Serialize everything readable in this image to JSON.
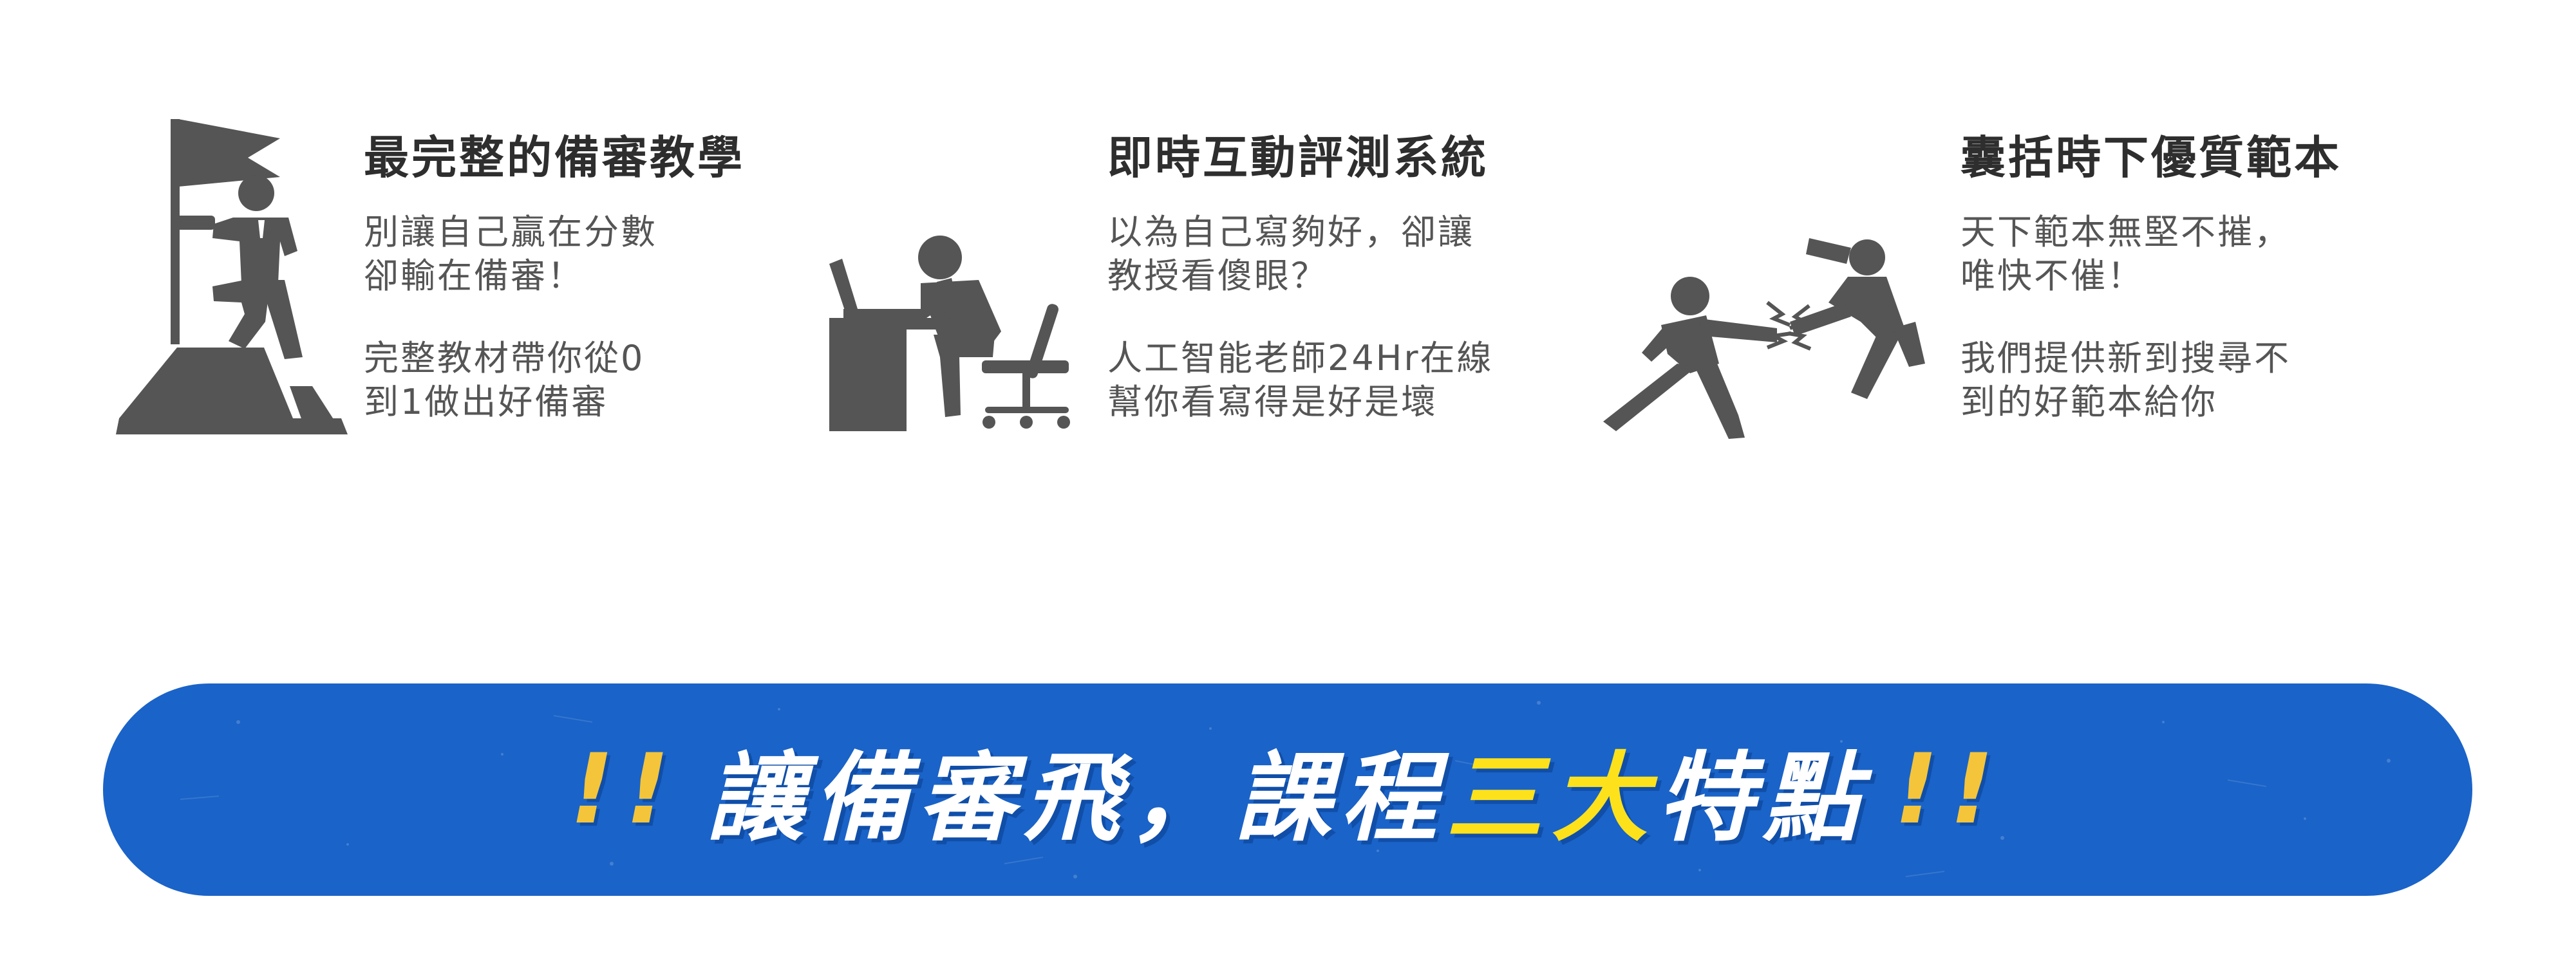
{
  "colors": {
    "icon_gray": "#555555",
    "title_text": "#2e2e2e",
    "body_text": "#555555",
    "banner_blue": "#1a63c8",
    "banner_highlight_yellow": "#fde21b",
    "exclamation_yellow": "#f4c53a",
    "banner_text_white": "#ffffff"
  },
  "features": [
    {
      "icon": "flag-summit-icon",
      "title": "最完整的備審教學",
      "paragraphs": [
        [
          "別讓自己贏在分數",
          "卻輸在備審！"
        ],
        [
          "完整教材帶你從0",
          "到1做出好備審"
        ]
      ]
    },
    {
      "icon": "desk-thinking-icon",
      "title": "即時互動評測系統",
      "paragraphs": [
        [
          "以為自己寫夠好，卻讓",
          "教授看傻眼？"
        ],
        [
          "人工智能老師24Hr在線",
          "幫你看寫得是好是壞"
        ]
      ]
    },
    {
      "icon": "punch-fight-icon",
      "title": "囊括時下優質範本",
      "paragraphs": [
        [
          "天下範本無堅不摧，",
          "唯快不催！"
        ],
        [
          "我們提供新到搜尋不",
          "到的好範本給你"
        ]
      ]
    }
  ],
  "banner": {
    "bang_left": "!!",
    "text_before": "讓備審飛，課程",
    "highlight": "三大",
    "text_after": "特點",
    "bang_right": "!!"
  }
}
